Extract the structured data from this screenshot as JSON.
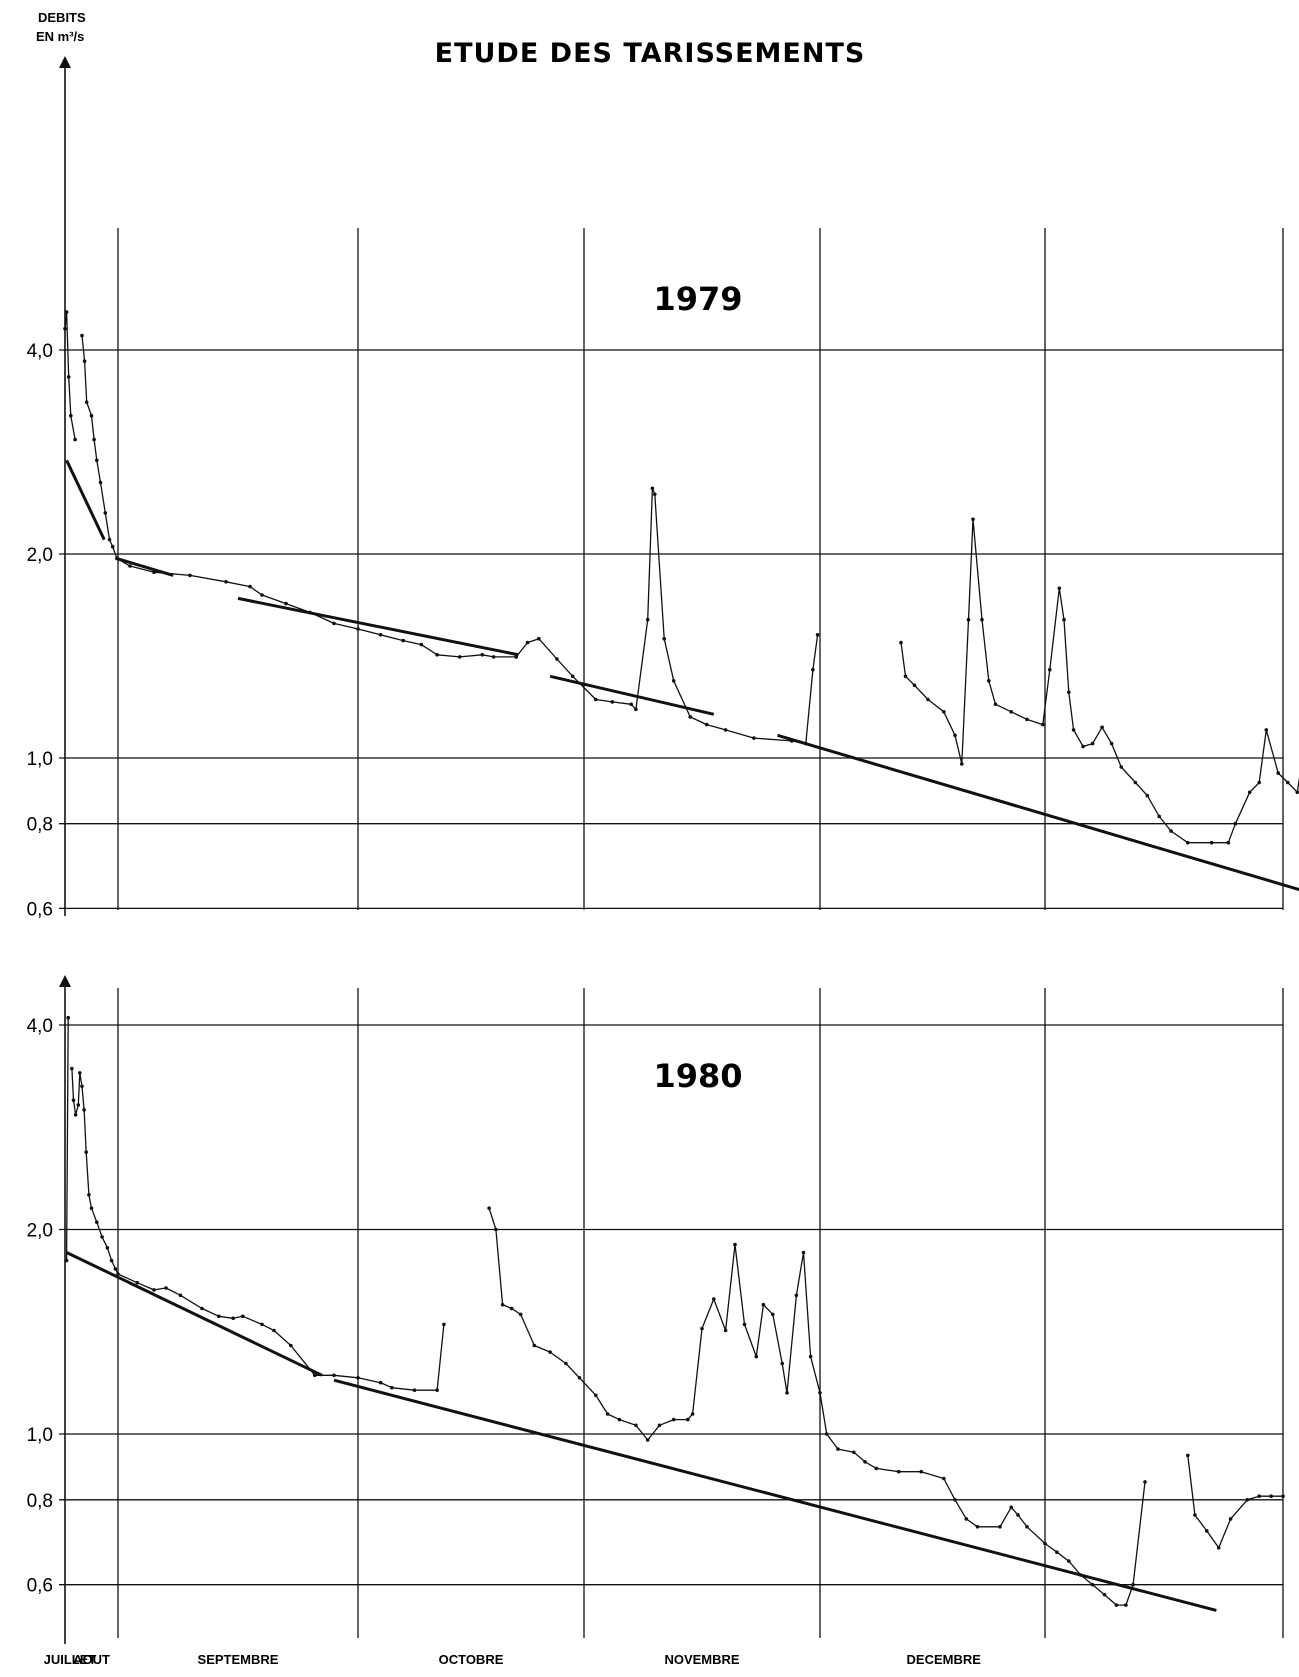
{
  "figure": {
    "title": "ETUDE DES TARISSEMENTS",
    "ylabel_line1": "DEBITS",
    "ylabel_line2": "EN m³/s",
    "months": [
      "JUILLET",
      "AOUT",
      "SEPTEMBRE",
      "OCTOBRE",
      "NOVEMBRE",
      "DECEMBRE"
    ]
  },
  "chart_data": [
    {
      "type": "line",
      "title": "1979",
      "y_scale": "log",
      "ylim": [
        0.6,
        4.0
      ],
      "yticks": [
        {
          "value": 0.6,
          "label": "0,6"
        },
        {
          "value": 0.8,
          "label": "0,8"
        },
        {
          "value": 1.0,
          "label": "1,0"
        },
        {
          "value": 2.0,
          "label": "2,0"
        },
        {
          "value": 4.0,
          "label": "4,0"
        }
      ],
      "xlim": [
        7.0,
        13.05
      ],
      "x_unit": "month (7 = 1 July, 13 = 1 January)",
      "grid": true,
      "series": [
        {
          "role": "debits",
          "points": [
            [
              7.0,
              4.3
            ],
            [
              7.03,
              4.55
            ],
            [
              7.07,
              3.65
            ],
            [
              7.11,
              3.2
            ],
            [
              7.19,
              2.95
            ]
          ]
        },
        {
          "role": "debits",
          "points": [
            [
              7.32,
              4.2
            ],
            [
              7.37,
              3.85
            ],
            [
              7.41,
              3.35
            ],
            [
              7.5,
              3.2
            ],
            [
              7.55,
              2.95
            ],
            [
              7.6,
              2.75
            ],
            [
              7.67,
              2.55
            ],
            [
              7.76,
              2.3
            ],
            [
              7.84,
              2.1
            ],
            [
              7.9,
              2.05
            ],
            [
              7.98,
              1.97
            ],
            [
              8.05,
              1.92
            ],
            [
              8.15,
              1.88
            ],
            [
              8.3,
              1.86
            ],
            [
              8.45,
              1.82
            ],
            [
              8.55,
              1.79
            ],
            [
              8.6,
              1.74
            ],
            [
              8.7,
              1.69
            ],
            [
              8.8,
              1.64
            ],
            [
              8.9,
              1.58
            ],
            [
              9.0,
              1.55
            ],
            [
              9.1,
              1.52
            ],
            [
              9.2,
              1.49
            ],
            [
              9.28,
              1.47
            ],
            [
              9.35,
              1.42
            ],
            [
              9.45,
              1.41
            ],
            [
              9.55,
              1.42
            ],
            [
              9.6,
              1.41
            ],
            [
              9.7,
              1.41
            ]
          ]
        },
        {
          "role": "debits",
          "points": [
            [
              9.7,
              1.41
            ],
            [
              9.75,
              1.48
            ],
            [
              9.8,
              1.5
            ],
            [
              9.88,
              1.4
            ],
            [
              9.95,
              1.32
            ],
            [
              10.05,
              1.22
            ],
            [
              10.12,
              1.21
            ],
            [
              10.2,
              1.2
            ],
            [
              10.22,
              1.18
            ],
            [
              10.27,
              1.6
            ],
            [
              10.29,
              2.5
            ],
            [
              10.3,
              2.45
            ],
            [
              10.34,
              1.5
            ],
            [
              10.38,
              1.3
            ],
            [
              10.45,
              1.15
            ],
            [
              10.52,
              1.12
            ],
            [
              10.6,
              1.1
            ],
            [
              10.72,
              1.07
            ],
            [
              10.88,
              1.06
            ],
            [
              10.94,
              1.05
            ],
            [
              10.97,
              1.35
            ],
            [
              10.99,
              1.52
            ]
          ]
        },
        {
          "role": "debits",
          "points": [
            [
              11.36,
              1.48
            ],
            [
              11.38,
              1.32
            ],
            [
              11.42,
              1.28
            ],
            [
              11.48,
              1.22
            ],
            [
              11.55,
              1.17
            ],
            [
              11.6,
              1.08
            ],
            [
              11.63,
              0.98
            ],
            [
              11.66,
              1.6
            ],
            [
              11.68,
              2.25
            ],
            [
              11.72,
              1.6
            ],
            [
              11.75,
              1.3
            ],
            [
              11.78,
              1.2
            ],
            [
              11.85,
              1.17
            ],
            [
              11.92,
              1.14
            ],
            [
              11.99,
              1.12
            ],
            [
              12.02,
              1.35
            ],
            [
              12.06,
              1.78
            ],
            [
              12.08,
              1.6
            ],
            [
              12.1,
              1.25
            ],
            [
              12.12,
              1.1
            ],
            [
              12.16,
              1.04
            ],
            [
              12.2,
              1.05
            ],
            [
              12.24,
              1.11
            ],
            [
              12.28,
              1.05
            ],
            [
              12.32,
              0.97
            ],
            [
              12.38,
              0.92
            ],
            [
              12.43,
              0.88
            ],
            [
              12.48,
              0.82
            ],
            [
              12.53,
              0.78
            ],
            [
              12.6,
              0.75
            ],
            [
              12.7,
              0.75
            ],
            [
              12.77,
              0.75
            ],
            [
              12.8,
              0.8
            ],
            [
              12.86,
              0.89
            ],
            [
              12.9,
              0.92
            ],
            [
              12.93,
              1.1
            ],
            [
              12.98,
              0.95
            ],
            [
              13.02,
              0.92
            ],
            [
              13.06,
              0.89
            ],
            [
              13.1,
              1.1
            ],
            [
              13.14,
              1.3
            ],
            [
              13.2,
              1.3
            ],
            [
              13.24,
              1.05
            ],
            [
              13.25,
              1.01
            ]
          ]
        },
        {
          "role": "tarissement",
          "points": [
            [
              7.03,
              2.75
            ],
            [
              7.74,
              2.1
            ]
          ]
        },
        {
          "role": "tarissement",
          "points": [
            [
              7.97,
              1.97
            ],
            [
              8.23,
              1.86
            ]
          ]
        },
        {
          "role": "tarissement",
          "points": [
            [
              8.5,
              1.72
            ],
            [
              9.71,
              1.42
            ]
          ]
        },
        {
          "role": "tarissement",
          "points": [
            [
              9.85,
              1.32
            ],
            [
              10.55,
              1.16
            ]
          ]
        },
        {
          "role": "tarissement",
          "points": [
            [
              10.82,
              1.08
            ],
            [
              13.3,
              0.605
            ]
          ]
        }
      ]
    },
    {
      "type": "line",
      "title": "1980",
      "y_scale": "log",
      "ylim": [
        0.55,
        4.0
      ],
      "yticks": [
        {
          "value": 0.6,
          "label": "0,6"
        },
        {
          "value": 0.8,
          "label": "0,8"
        },
        {
          "value": 1.0,
          "label": "1,0"
        },
        {
          "value": 2.0,
          "label": "2,0"
        },
        {
          "value": 4.0,
          "label": "4,0"
        }
      ],
      "xlim": [
        7.0,
        13.05
      ],
      "x_unit": "month (7 = 1 July, 13 = 1 January)",
      "grid": true,
      "series": [
        {
          "role": "debits",
          "points": [
            [
              7.03,
              1.8
            ],
            [
              7.06,
              4.1
            ]
          ]
        },
        {
          "role": "debits",
          "points": [
            [
              7.13,
              3.45
            ],
            [
              7.16,
              3.1
            ],
            [
              7.2,
              2.95
            ],
            [
              7.25,
              3.05
            ],
            [
              7.28,
              3.4
            ],
            [
              7.32,
              3.25
            ],
            [
              7.36,
              3.0
            ],
            [
              7.4,
              2.6
            ],
            [
              7.45,
              2.25
            ],
            [
              7.5,
              2.15
            ],
            [
              7.6,
              2.05
            ],
            [
              7.7,
              1.95
            ],
            [
              7.8,
              1.88
            ],
            [
              7.88,
              1.8
            ],
            [
              7.95,
              1.75
            ],
            [
              8.0,
              1.72
            ],
            [
              8.08,
              1.67
            ],
            [
              8.15,
              1.63
            ],
            [
              8.2,
              1.64
            ],
            [
              8.26,
              1.6
            ],
            [
              8.35,
              1.53
            ],
            [
              8.42,
              1.49
            ],
            [
              8.48,
              1.48
            ],
            [
              8.52,
              1.49
            ],
            [
              8.6,
              1.45
            ],
            [
              8.65,
              1.42
            ],
            [
              8.72,
              1.35
            ],
            [
              8.82,
              1.22
            ],
            [
              8.9,
              1.22
            ],
            [
              9.0,
              1.21
            ],
            [
              9.1,
              1.19
            ],
            [
              9.15,
              1.17
            ],
            [
              9.25,
              1.16
            ],
            [
              9.35,
              1.16
            ],
            [
              9.38,
              1.45
            ]
          ]
        },
        {
          "role": "debits",
          "points": [
            [
              9.58,
              2.15
            ],
            [
              9.61,
              2.0
            ],
            [
              9.64,
              1.55
            ],
            [
              9.68,
              1.53
            ],
            [
              9.72,
              1.5
            ],
            [
              9.78,
              1.35
            ],
            [
              9.85,
              1.32
            ],
            [
              9.92,
              1.27
            ],
            [
              9.98,
              1.21
            ],
            [
              10.05,
              1.14
            ],
            [
              10.1,
              1.07
            ],
            [
              10.15,
              1.05
            ],
            [
              10.22,
              1.03
            ],
            [
              10.27,
              0.98
            ],
            [
              10.32,
              1.03
            ],
            [
              10.38,
              1.05
            ],
            [
              10.44,
              1.05
            ],
            [
              10.46,
              1.07
            ],
            [
              10.5,
              1.43
            ],
            [
              10.55,
              1.58
            ],
            [
              10.6,
              1.42
            ],
            [
              10.64,
              1.9
            ],
            [
              10.68,
              1.45
            ],
            [
              10.73,
              1.3
            ],
            [
              10.76,
              1.55
            ],
            [
              10.8,
              1.5
            ],
            [
              10.84,
              1.27
            ],
            [
              10.86,
              1.15
            ],
            [
              10.9,
              1.6
            ],
            [
              10.93,
              1.85
            ],
            [
              10.96,
              1.3
            ],
            [
              11.0,
              1.15
            ],
            [
              11.03,
              1.0
            ],
            [
              11.08,
              0.95
            ],
            [
              11.15,
              0.94
            ],
            [
              11.2,
              0.91
            ],
            [
              11.25,
              0.89
            ],
            [
              11.35,
              0.88
            ],
            [
              11.45,
              0.88
            ],
            [
              11.55,
              0.86
            ],
            [
              11.6,
              0.8
            ],
            [
              11.65,
              0.75
            ],
            [
              11.7,
              0.73
            ],
            [
              11.8,
              0.73
            ],
            [
              11.85,
              0.78
            ],
            [
              11.88,
              0.76
            ],
            [
              11.92,
              0.73
            ],
            [
              12.0,
              0.69
            ],
            [
              12.05,
              0.67
            ],
            [
              12.1,
              0.65
            ],
            [
              12.15,
              0.62
            ],
            [
              12.2,
              0.6
            ],
            [
              12.25,
              0.58
            ],
            [
              12.3,
              0.56
            ],
            [
              12.34,
              0.56
            ],
            [
              12.37,
              0.6
            ],
            [
              12.42,
              0.85
            ]
          ]
        },
        {
          "role": "debits",
          "points": [
            [
              12.6,
              0.93
            ],
            [
              12.63,
              0.76
            ],
            [
              12.68,
              0.72
            ],
            [
              12.73,
              0.68
            ],
            [
              12.78,
              0.75
            ],
            [
              12.85,
              0.8
            ],
            [
              12.9,
              0.81
            ],
            [
              12.95,
              0.81
            ],
            [
              13.0,
              0.81
            ]
          ]
        },
        {
          "role": "tarissement",
          "points": [
            [
              7.03,
              1.85
            ],
            [
              8.85,
              1.22
            ]
          ]
        },
        {
          "role": "tarissement",
          "points": [
            [
              8.9,
              1.2
            ],
            [
              12.72,
              0.55
            ]
          ]
        }
      ]
    }
  ]
}
